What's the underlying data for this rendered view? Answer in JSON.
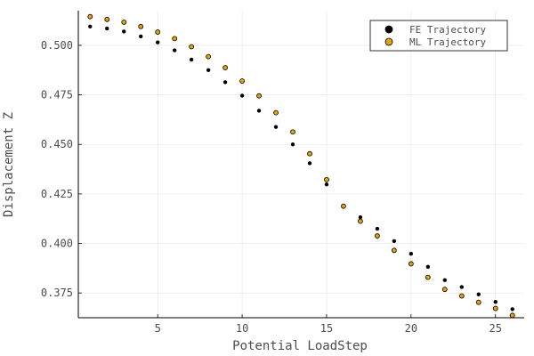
{
  "chart_data": {
    "type": "scatter",
    "xlabel": "Potential LoadStep",
    "ylabel": "Displacement Z",
    "xlim": [
      0.3,
      26.7
    ],
    "ylim": [
      0.3625,
      0.5175
    ],
    "xticks": [
      5,
      10,
      15,
      20,
      25
    ],
    "yticks": [
      0.375,
      0.4,
      0.425,
      0.45,
      0.475,
      0.5
    ],
    "ytick_labels": [
      "0.375",
      "0.400",
      "0.425",
      "0.450",
      "0.475",
      "0.500"
    ],
    "grid": true,
    "legend_position": "top-right",
    "x": [
      1,
      2,
      3,
      4,
      5,
      6,
      7,
      8,
      9,
      10,
      11,
      12,
      13,
      14,
      15,
      16,
      17,
      18,
      19,
      20,
      21,
      22,
      23,
      24,
      25,
      26
    ],
    "series": [
      {
        "name": "FE Trajectory",
        "color": "#000000",
        "values": [
          0.5095,
          0.5085,
          0.507,
          0.5045,
          0.5015,
          0.4975,
          0.4928,
          0.4875,
          0.4814,
          0.4746,
          0.467,
          0.4588,
          0.45,
          0.4405,
          0.4298,
          0.4185,
          0.4132,
          0.4074,
          0.4012,
          0.3948,
          0.3882,
          0.3815,
          0.378,
          0.3743,
          0.3705,
          0.3668
        ]
      },
      {
        "name": "ML Trajectory",
        "color": "#e5a50a",
        "values": [
          0.5145,
          0.5131,
          0.5117,
          0.5095,
          0.5067,
          0.5034,
          0.4993,
          0.4943,
          0.4887,
          0.482,
          0.4745,
          0.466,
          0.4563,
          0.4453,
          0.4322,
          0.4188,
          0.4112,
          0.4038,
          0.3965,
          0.3897,
          0.3829,
          0.3768,
          0.3735,
          0.3703,
          0.3672,
          0.3637
        ]
      }
    ]
  }
}
